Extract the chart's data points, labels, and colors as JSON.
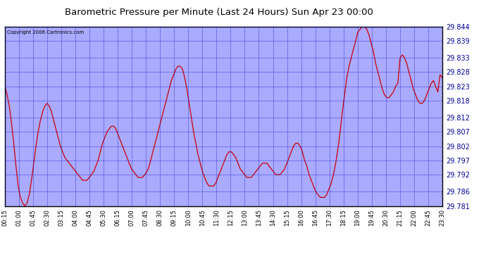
{
  "title": "Barometric Pressure per Minute (Last 24 Hours) Sun Apr 23 00:00",
  "copyright": "Copyright 2006 Cartronics.com",
  "background_color": "#ffffff",
  "plot_bg_color": "#aaaaff",
  "line_color": "#cc0000",
  "text_color": "#000000",
  "outer_bg": "#ffffff",
  "ylim": [
    29.781,
    29.844
  ],
  "yticks": [
    29.781,
    29.786,
    29.792,
    29.797,
    29.802,
    29.807,
    29.812,
    29.818,
    29.823,
    29.828,
    29.833,
    29.839,
    29.844
  ],
  "xtick_labels": [
    "00:15",
    "01:00",
    "01:45",
    "02:30",
    "03:15",
    "04:00",
    "04:45",
    "05:30",
    "06:15",
    "07:00",
    "07:45",
    "08:30",
    "09:15",
    "10:00",
    "10:45",
    "11:30",
    "12:15",
    "13:00",
    "13:45",
    "14:30",
    "15:15",
    "16:00",
    "16:45",
    "17:30",
    "18:15",
    "19:00",
    "19:45",
    "20:30",
    "21:15",
    "22:00",
    "22:45",
    "23:30"
  ],
  "data_y": [
    29.823,
    29.82,
    29.816,
    29.81,
    29.803,
    29.795,
    29.788,
    29.784,
    29.782,
    29.781,
    29.782,
    29.785,
    29.79,
    29.796,
    29.802,
    29.807,
    29.811,
    29.814,
    29.816,
    29.817,
    29.816,
    29.814,
    29.811,
    29.808,
    29.805,
    29.802,
    29.8,
    29.798,
    29.797,
    29.796,
    29.795,
    29.794,
    29.793,
    29.792,
    29.791,
    29.79,
    29.79,
    29.79,
    29.791,
    29.792,
    29.793,
    29.795,
    29.797,
    29.8,
    29.803,
    29.805,
    29.807,
    29.808,
    29.809,
    29.809,
    29.808,
    29.806,
    29.804,
    29.802,
    29.8,
    29.798,
    29.796,
    29.794,
    29.793,
    29.792,
    29.791,
    29.791,
    29.791,
    29.792,
    29.793,
    29.795,
    29.798,
    29.801,
    29.804,
    29.807,
    29.81,
    29.813,
    29.816,
    29.819,
    29.822,
    29.825,
    29.827,
    29.829,
    29.83,
    29.83,
    29.829,
    29.826,
    29.822,
    29.817,
    29.812,
    29.807,
    29.803,
    29.799,
    29.796,
    29.793,
    29.791,
    29.789,
    29.788,
    29.788,
    29.788,
    29.789,
    29.791,
    29.793,
    29.795,
    29.797,
    29.799,
    29.8,
    29.8,
    29.799,
    29.798,
    29.796,
    29.794,
    29.793,
    29.792,
    29.791,
    29.791,
    29.791,
    29.792,
    29.793,
    29.794,
    29.795,
    29.796,
    29.796,
    29.796,
    29.795,
    29.794,
    29.793,
    29.792,
    29.792,
    29.792,
    29.793,
    29.794,
    29.796,
    29.798,
    29.8,
    29.802,
    29.803,
    29.803,
    29.802,
    29.8,
    29.797,
    29.795,
    29.792,
    29.79,
    29.788,
    29.786,
    29.785,
    29.784,
    29.784,
    29.784,
    29.785,
    29.787,
    29.789,
    29.792,
    29.796,
    29.801,
    29.807,
    29.814,
    29.82,
    29.826,
    29.83,
    29.833,
    29.836,
    29.839,
    29.842,
    29.843,
    29.844,
    29.844,
    29.843,
    29.841,
    29.838,
    29.835,
    29.831,
    29.828,
    29.825,
    29.822,
    29.82,
    29.819,
    29.819,
    29.82,
    29.821,
    29.823,
    29.824,
    29.833,
    29.834,
    29.833,
    29.831,
    29.828,
    29.825,
    29.822,
    29.82,
    29.818,
    29.817,
    29.817,
    29.818,
    29.82,
    29.822,
    29.824,
    29.825,
    29.823,
    29.821,
    29.827,
    29.826
  ]
}
